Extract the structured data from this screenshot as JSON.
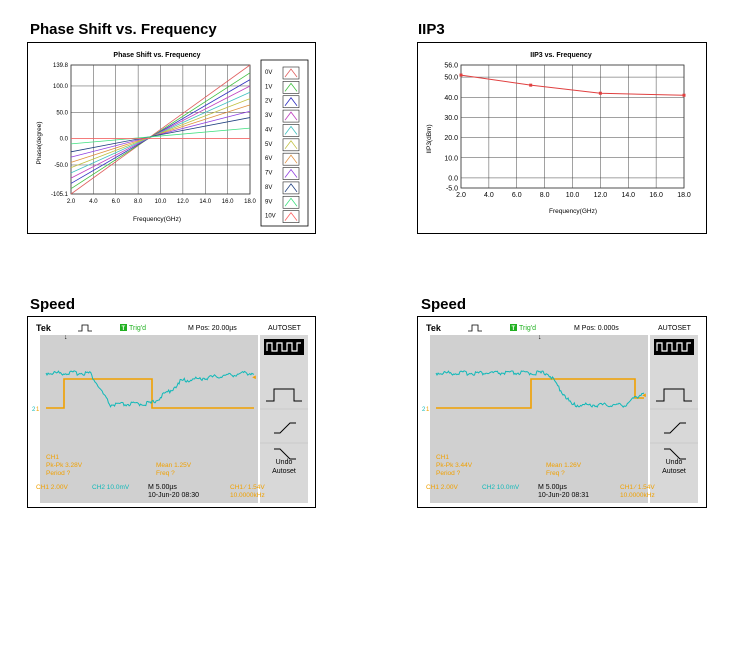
{
  "sections": {
    "phase_title": "Phase Shift vs. Frequency",
    "iip3_title": "IIP3",
    "speed1_title": "Speed",
    "speed2_title": "Speed"
  },
  "colors": {
    "iip3_line": "#e04040",
    "ch1": "#f0a000",
    "ch2": "#10b8b8",
    "scope_bg": "#d0d0d0",
    "trig_green": "#20b020"
  },
  "chart_data": [
    {
      "type": "line",
      "title": "Phase Shift vs. Frequency",
      "xlabel": "Frequency(GHz)",
      "ylabel": "Phase(degree)",
      "xlim": [
        2.0,
        18.0
      ],
      "ylim": [
        -105.1,
        139.8
      ],
      "x_ticks": [
        "2.0",
        "4.0",
        "6.0",
        "8.0",
        "10.0",
        "12.0",
        "14.0",
        "16.0",
        "18.0"
      ],
      "y_ticks": [
        "139.8",
        "100.0",
        "50.0",
        "0.0",
        "-50.0",
        "-105.1"
      ],
      "grid": true,
      "legend": "right",
      "x": [
        2,
        18
      ],
      "series": [
        {
          "name": "0V",
          "color": "#e06060",
          "values": [
            -105.1,
            139.8
          ]
        },
        {
          "name": "1V",
          "color": "#40c040",
          "values": [
            -95,
            125
          ]
        },
        {
          "name": "2V",
          "color": "#3030c0",
          "values": [
            -85,
            112
          ]
        },
        {
          "name": "3V",
          "color": "#c040c0",
          "values": [
            -75,
            100
          ]
        },
        {
          "name": "4V",
          "color": "#40c0c0",
          "values": [
            -65,
            88
          ]
        },
        {
          "name": "5V",
          "color": "#c0c040",
          "values": [
            -55,
            76
          ]
        },
        {
          "name": "6V",
          "color": "#e09040",
          "values": [
            -45,
            64
          ]
        },
        {
          "name": "7V",
          "color": "#9040e0",
          "values": [
            -35,
            52
          ]
        },
        {
          "name": "8V",
          "color": "#204080",
          "values": [
            -25,
            40
          ]
        },
        {
          "name": "9V",
          "color": "#40e080",
          "values": [
            -10,
            20
          ]
        },
        {
          "name": "10V",
          "color": "#ff6060",
          "values": [
            0,
            0
          ]
        }
      ]
    },
    {
      "type": "line",
      "title": "IIP3 vs. Frequency",
      "xlabel": "Frequency(GHz)",
      "ylabel": "IIP3(dBm)",
      "xlim": [
        2.0,
        18.0
      ],
      "ylim": [
        -5.0,
        56.0
      ],
      "x_ticks": [
        "2.0",
        "4.0",
        "6.0",
        "8.0",
        "10.0",
        "12.0",
        "14.0",
        "16.0",
        "18.0"
      ],
      "y_ticks": [
        "56.0",
        "50.0",
        "40.0",
        "30.0",
        "20.0",
        "10.0",
        "0.0",
        "-5.0"
      ],
      "grid": true,
      "x": [
        2,
        7,
        12,
        18
      ],
      "values": [
        51,
        46,
        42,
        41
      ]
    }
  ],
  "scopes": [
    {
      "brand": "Tek",
      "trig_label": "Trig'd",
      "trig_box": "T",
      "mpos": "M Pos: 20.00µs",
      "autoset": "AUTOSET",
      "undo1": "Undo",
      "undo2": "Autoset",
      "ch1_marker": "1",
      "ch2_marker": "2",
      "meas_ch": "CH1",
      "pkpk": "Pk-Pk 3.28V",
      "period": "Period ?",
      "mean": "Mean 1.25V",
      "freq": "Freq ?",
      "ch1_scale": "CH1  2.00V",
      "ch2_scale": "CH2  10.0mV",
      "time_scale": "M 5.00µs",
      "date": "10-Jun-20 08:30",
      "trig_level": "CH1 ∕ 1.54V",
      "trig_freq": "10.0000kHz"
    },
    {
      "brand": "Tek",
      "trig_label": "Trig'd",
      "trig_box": "T",
      "mpos": "M Pos: 0.000s",
      "autoset": "AUTOSET",
      "undo1": "Undo",
      "undo2": "Autoset",
      "ch1_marker": "1",
      "ch2_marker": "2",
      "meas_ch": "CH1",
      "pkpk": "Pk-Pk 3.44V",
      "period": "Period ?",
      "mean": "Mean 1.26V",
      "freq": "Freq ?",
      "ch1_scale": "CH1  2.00V",
      "ch2_scale": "CH2  10.0mV",
      "time_scale": "M 5.00µs",
      "date": "10-Jun-20 08:31",
      "trig_level": "CH1 ∕ 1.54V",
      "trig_freq": "10.0000kHz"
    }
  ]
}
